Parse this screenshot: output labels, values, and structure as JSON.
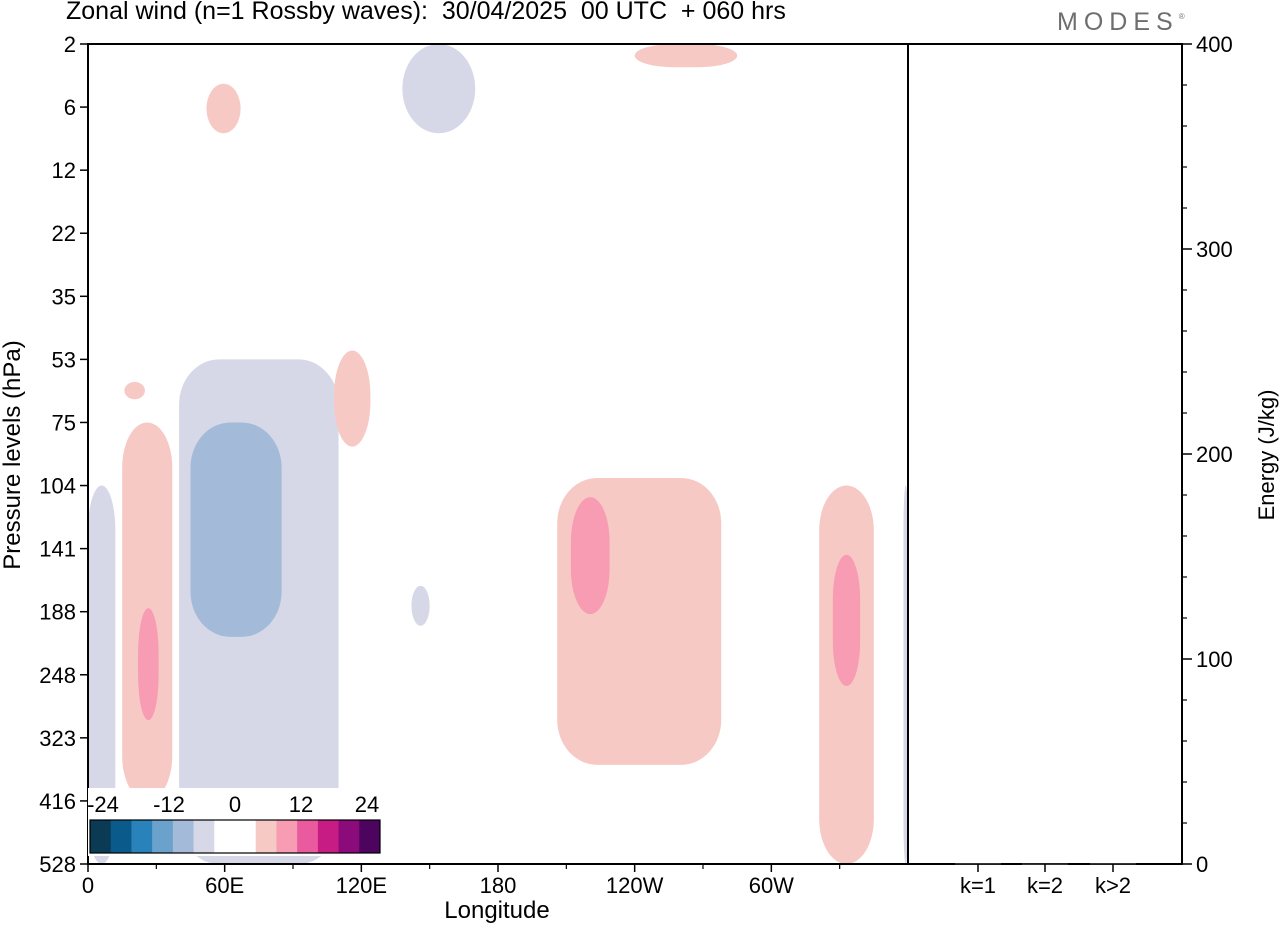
{
  "header": {
    "title": "Zonal wind (n=1 Rossby waves):  30/04/2025  00 UTC  + 060 hrs",
    "brand": "MODES",
    "brand_mark": "®"
  },
  "chart_data": [
    {
      "type": "heatmap",
      "title": "Zonal wind (n=1 Rossby waves):  30/04/2025  00 UTC  + 060 hrs",
      "xlabel": "Longitude",
      "ylabel": "Pressure levels (hPa)",
      "x_ticks": [
        {
          "lon": 0,
          "label": "0"
        },
        {
          "lon": 60,
          "label": "60E"
        },
        {
          "lon": 120,
          "label": "120E"
        },
        {
          "lon": 180,
          "label": "180"
        },
        {
          "lon": 240,
          "label": "120W"
        },
        {
          "lon": 300,
          "label": "60W"
        }
      ],
      "xlim": [
        0,
        360
      ],
      "y_ticks": [
        "2",
        "6",
        "12",
        "22",
        "35",
        "53",
        "75",
        "104",
        "141",
        "188",
        "248",
        "323",
        "416",
        "528"
      ],
      "colorbar": {
        "labels": [
          "-24",
          "-12",
          "0",
          "12",
          "24"
        ],
        "colors": [
          "#0b3a55",
          "#0b5a8c",
          "#2a82ba",
          "#6aa2cc",
          "#a3bbd9",
          "#d6d8e8",
          "#ffffff",
          "#ffffff",
          "#f7c9c5",
          "#f79cb3",
          "#ea5a9e",
          "#c81c85",
          "#8c0b7a",
          "#4d045f"
        ]
      },
      "contours": [
        {
          "level": "-9",
          "color": "#d6d8e8",
          "regions": [
            {
              "lon": [
                0,
                12
              ],
              "levels": [
                "104",
                "528"
              ]
            },
            {
              "lon": [
                40,
                110
              ],
              "levels": [
                "53",
                "528"
              ]
            },
            {
              "lon": [
                142,
                150
              ],
              "levels": [
                "167",
                "200"
              ]
            },
            {
              "lon": [
                138,
                170
              ],
              "levels": [
                "2",
                "8"
              ]
            },
            {
              "lon": [
                358,
                360
              ],
              "levels": [
                "104",
                "528"
              ]
            }
          ]
        },
        {
          "level": "-12",
          "color": "#a3bbd9",
          "regions": [
            {
              "lon": [
                45,
                85
              ],
              "levels": [
                "75",
                "210"
              ]
            }
          ]
        },
        {
          "level": "9",
          "color": "#f7c9c5",
          "regions": [
            {
              "lon": [
                15,
                37
              ],
              "levels": [
                "75",
                "416"
              ]
            },
            {
              "lon": [
                16,
                25
              ],
              "levels": [
                "60",
                "66"
              ]
            },
            {
              "lon": [
                52,
                67
              ],
              "levels": [
                "4",
                "8"
              ]
            },
            {
              "lon": [
                108,
                124
              ],
              "levels": [
                "50",
                "85"
              ]
            },
            {
              "lon": [
                206,
                278
              ],
              "levels": [
                "100",
                "360"
              ]
            },
            {
              "lon": [
                240,
                285
              ],
              "levels": [
                "2",
                "3"
              ]
            },
            {
              "lon": [
                321,
                345
              ],
              "levels": [
                "104",
                "528"
              ]
            }
          ]
        },
        {
          "level": "12",
          "color": "#f79cb3",
          "regions": [
            {
              "lon": [
                22,
                31
              ],
              "levels": [
                "185",
                "300"
              ]
            },
            {
              "lon": [
                212,
                229
              ],
              "levels": [
                "110",
                "190"
              ]
            },
            {
              "lon": [
                327,
                339
              ],
              "levels": [
                "145",
                "260"
              ]
            }
          ]
        }
      ]
    },
    {
      "type": "bar",
      "ylabel": "Energy (J/kg)",
      "ylim": [
        0,
        400
      ],
      "y_ticks": [
        "0",
        "100",
        "200",
        "300",
        "400"
      ],
      "categories": [
        "k=1",
        "k=2",
        "k>2"
      ],
      "values": [
        0.3,
        0.2,
        0.3
      ]
    }
  ]
}
